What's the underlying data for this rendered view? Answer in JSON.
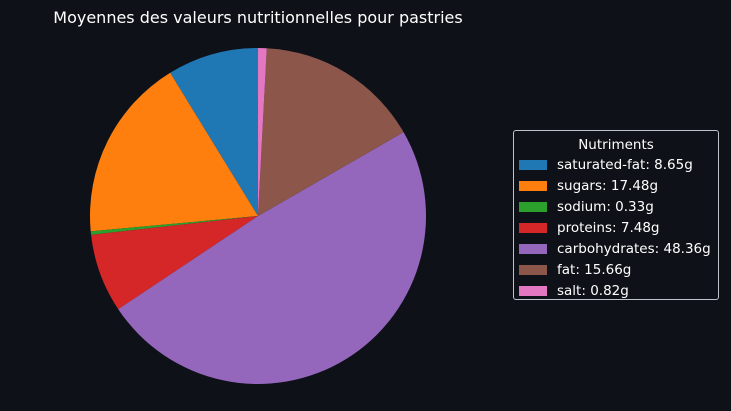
{
  "chart_data": {
    "type": "pie",
    "title": "Moyennes des valeurs nutritionnelles pour pastries",
    "legend_title": "Nutriments",
    "legend_position": "right",
    "start_angle_deg": 90,
    "direction": "counterclockwise",
    "slices": [
      {
        "name": "saturated-fat",
        "value": 8.65,
        "label": "saturated-fat: 8.65g",
        "color": "#1f77b4"
      },
      {
        "name": "sugars",
        "value": 17.48,
        "label": "sugars: 17.48g",
        "color": "#ff7f0e"
      },
      {
        "name": "sodium",
        "value": 0.33,
        "label": "sodium: 0.33g",
        "color": "#2ca02c"
      },
      {
        "name": "proteins",
        "value": 7.48,
        "label": "proteins: 7.48g",
        "color": "#d62728"
      },
      {
        "name": "carbohydrates",
        "value": 48.36,
        "label": "carbohydrates: 48.36g",
        "color": "#9467bd"
      },
      {
        "name": "fat",
        "value": 15.66,
        "label": "fat: 15.66g",
        "color": "#8c564b"
      },
      {
        "name": "salt",
        "value": 0.82,
        "label": "salt: 0.82g",
        "color": "#e377c2"
      }
    ]
  }
}
